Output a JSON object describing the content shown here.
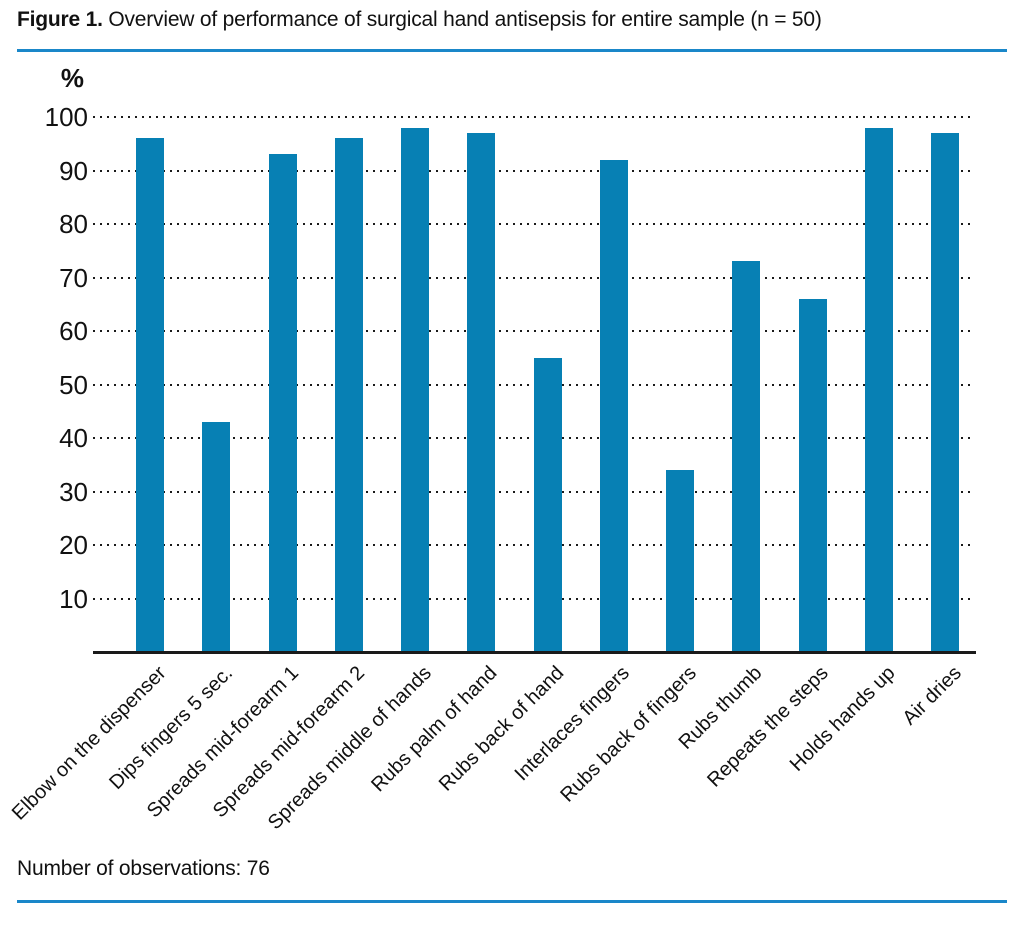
{
  "figure": {
    "title_prefix": "Figure 1.",
    "title_rest": " Overview of performance of surgical hand antisepsis for entire sample (n = 50)",
    "note": "Number of observations: 76",
    "accent_color": "#1a87c9"
  },
  "chart_data": {
    "type": "bar",
    "title": "Figure 1. Overview of performance of surgical hand antisepsis for entire sample (n = 50)",
    "ylabel": "%",
    "xlabel": "",
    "categories": [
      "Elbow on the dispenser",
      "Dips fingers 5 sec.",
      "Spreads mid-forearm 1",
      "Spreads mid-forearm 2",
      "Spreads middle of hands",
      "Rubs palm of hand",
      "Rubs back of hand",
      "Interlaces fingers",
      "Rubs back of fingers",
      "Rubs thumb",
      "Repeats the steps",
      "Holds hands up",
      "Air dries"
    ],
    "values": [
      96,
      43,
      93,
      96,
      98,
      97,
      55,
      92,
      34,
      73,
      66,
      98,
      97
    ],
    "yticks": [
      10,
      20,
      30,
      40,
      50,
      60,
      70,
      80,
      90,
      100
    ],
    "ylim": [
      0,
      100
    ],
    "grid": "horizontal-dotted",
    "legend": "none",
    "bar_color": "#0780b4",
    "axis_color": "#1a1a1a",
    "note": "Number of observations: 76"
  }
}
